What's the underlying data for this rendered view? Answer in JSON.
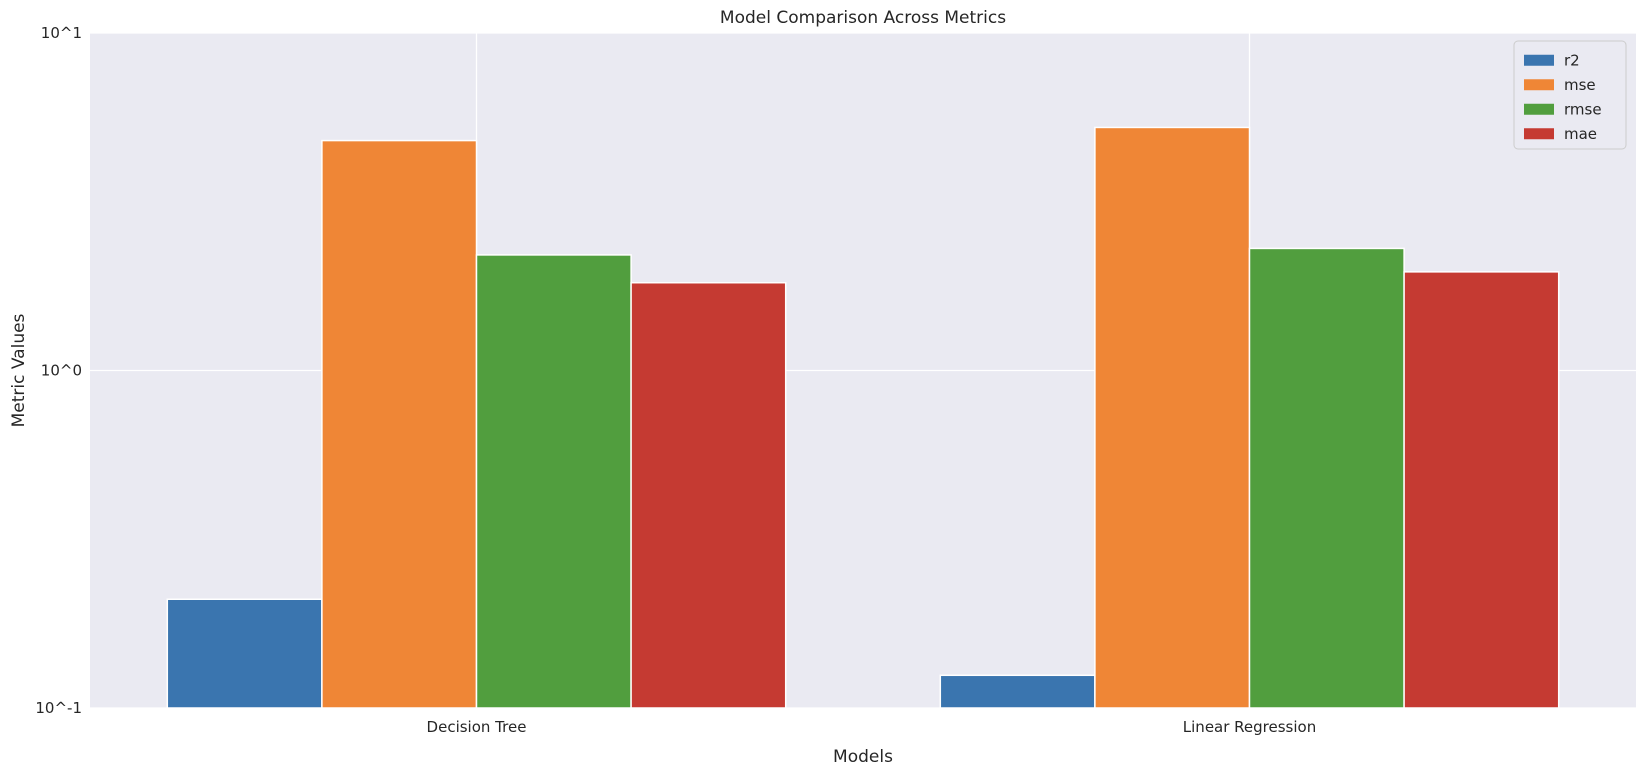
{
  "chart_data": {
    "type": "bar",
    "title": "Model Comparison Across Metrics",
    "xlabel": "Models",
    "ylabel": "Metric Values",
    "yscale": "log",
    "ylim": [
      0.1,
      10
    ],
    "yticks": [
      {
        "value": 10,
        "label": "10^1"
      },
      {
        "value": 1,
        "label": "10^0"
      },
      {
        "value": 0.1,
        "label": "10^-1"
      }
    ],
    "grid": true,
    "legend_position": "top-right",
    "categories": [
      "Decision Tree",
      "Linear Regression"
    ],
    "series": [
      {
        "name": "r2",
        "color": "#3a75af",
        "values": [
          0.21,
          0.125
        ]
      },
      {
        "name": "mse",
        "color": "#ef8636",
        "values": [
          4.8,
          5.25
        ]
      },
      {
        "name": "rmse",
        "color": "#519e3e",
        "values": [
          2.2,
          2.3
        ]
      },
      {
        "name": "mae",
        "color": "#c53a32",
        "values": [
          1.82,
          1.96
        ]
      }
    ]
  }
}
